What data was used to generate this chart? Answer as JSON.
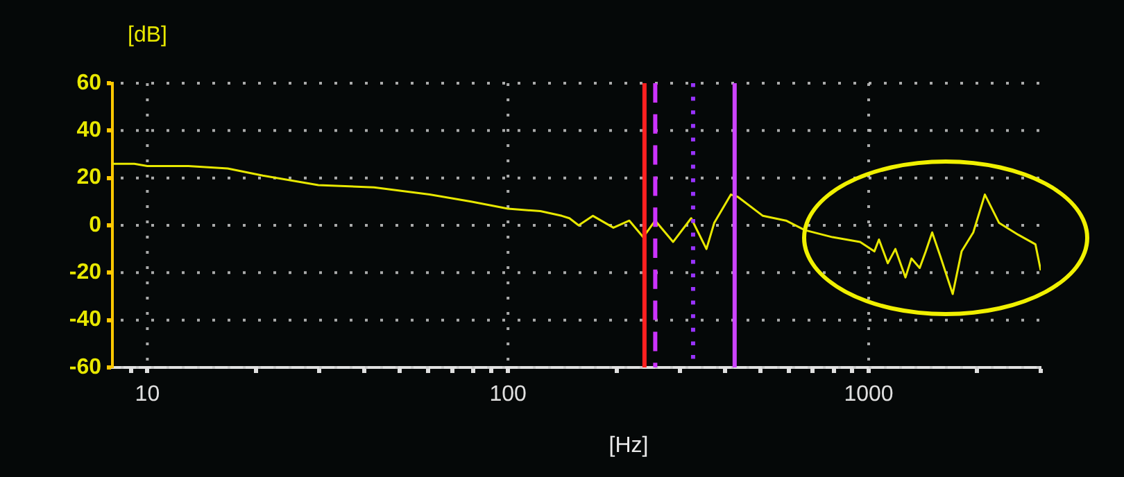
{
  "chart_data": {
    "type": "line",
    "xlabel": "[Hz]",
    "ylabel": "[dB]",
    "log": "x",
    "xlim": [
      8,
      3000
    ],
    "xticks": [
      {
        "value": 9,
        "label": null
      },
      10,
      {
        "value": 20,
        "label": null
      },
      {
        "value": 30,
        "label": null
      },
      {
        "value": 40,
        "label": null
      },
      {
        "value": 50,
        "label": null
      },
      {
        "value": 60,
        "label": null
      },
      {
        "value": 70,
        "label": null
      },
      {
        "value": 80,
        "label": null
      },
      {
        "value": 90,
        "label": null
      },
      100,
      {
        "value": 200,
        "label": null
      },
      {
        "value": 300,
        "label": null
      },
      {
        "value": 400,
        "label": null
      },
      {
        "value": 500,
        "label": null
      },
      {
        "value": 600,
        "label": null
      },
      {
        "value": 700,
        "label": null
      },
      {
        "value": 800,
        "label": null
      },
      {
        "value": 900,
        "label": null
      },
      1000,
      {
        "value": 2000,
        "label": null
      },
      {
        "value": 3000,
        "label": null
      }
    ],
    "ylim": [
      -60,
      60
    ],
    "yticks": [
      -60,
      -40,
      -20,
      0,
      20,
      40,
      60
    ],
    "grid": true,
    "legend": false,
    "marker": "none",
    "line_style": "solid",
    "series": [
      {
        "color": "#e8e800",
        "x": [
          8,
          9.2,
          10,
          13,
          16.7,
          20.9,
          29.8,
          42.5,
          60.6,
          79,
          100,
          123,
          141,
          148,
          157,
          172,
          196,
          217,
          237,
          256,
          287,
          322,
          355,
          373,
          415,
          434,
          509,
          590,
          665,
          794,
          947,
          1037,
          1068,
          1130,
          1186,
          1265,
          1314,
          1385,
          1440,
          1500,
          1580,
          1710,
          1810,
          1950,
          2100,
          2300,
          2600,
          2900,
          3000
        ],
        "values": [
          26,
          26,
          25,
          25,
          24,
          21,
          17,
          16,
          13,
          10,
          7,
          6,
          4,
          3,
          0,
          4,
          -1,
          2,
          -5,
          2,
          -7,
          3,
          -10,
          1,
          13,
          12,
          4,
          2,
          -2,
          -5,
          -7,
          -11,
          -6,
          -16,
          -10,
          -22,
          -14,
          -18,
          -11,
          -3,
          -13,
          -29,
          -11,
          -3,
          13,
          1,
          -4,
          -8,
          -19
        ]
      }
    ],
    "ref_lines": [
      {
        "axis": "x",
        "value": 239,
        "color": "#ff2020",
        "line_style": "solid"
      },
      {
        "axis": "x",
        "value": 256,
        "color": "#cc33ff",
        "line_style": "dashed"
      },
      {
        "axis": "x",
        "value": 326,
        "color": "#9933ff",
        "line_style": "dotted"
      },
      {
        "axis": "x",
        "value": 425,
        "color": "#cc44ff",
        "line_style": "solid"
      }
    ]
  }
}
